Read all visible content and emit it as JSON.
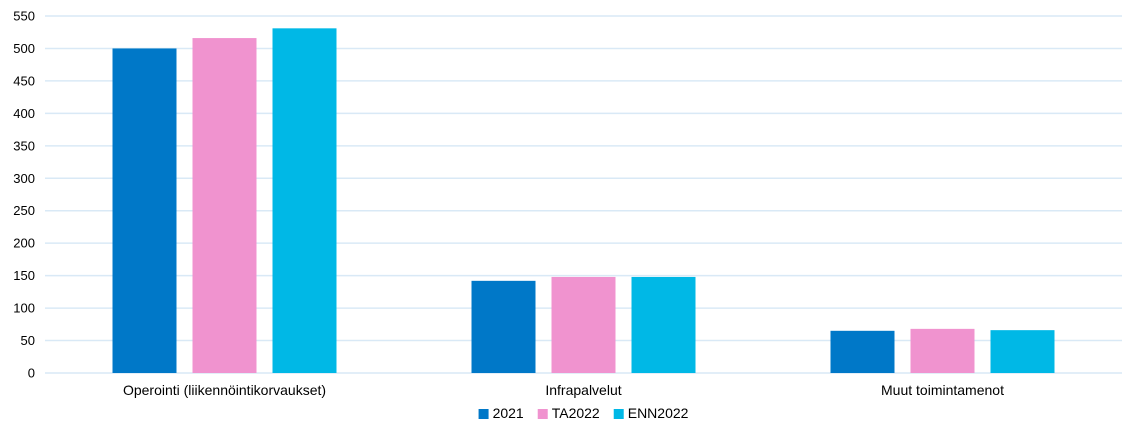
{
  "chart_data": {
    "type": "bar",
    "categories": [
      "Operointi (liikennöintikorvaukset)",
      "Infrapalvelut",
      "Muut toimintamenot"
    ],
    "series": [
      {
        "name": "2021",
        "values": [
          500,
          142,
          65
        ],
        "color": "#0078c8"
      },
      {
        "name": "TA2022",
        "values": [
          516,
          148,
          68
        ],
        "color": "#f093cf"
      },
      {
        "name": "ENN2022",
        "values": [
          531,
          148,
          66
        ],
        "color": "#00b8e6"
      }
    ],
    "yticks": [
      0,
      50,
      100,
      150,
      200,
      250,
      300,
      350,
      400,
      450,
      500,
      550
    ],
    "ylim": [
      0,
      550
    ],
    "grid": true,
    "legend_position": "bottom-center",
    "title": "",
    "xlabel": "",
    "ylabel": ""
  }
}
